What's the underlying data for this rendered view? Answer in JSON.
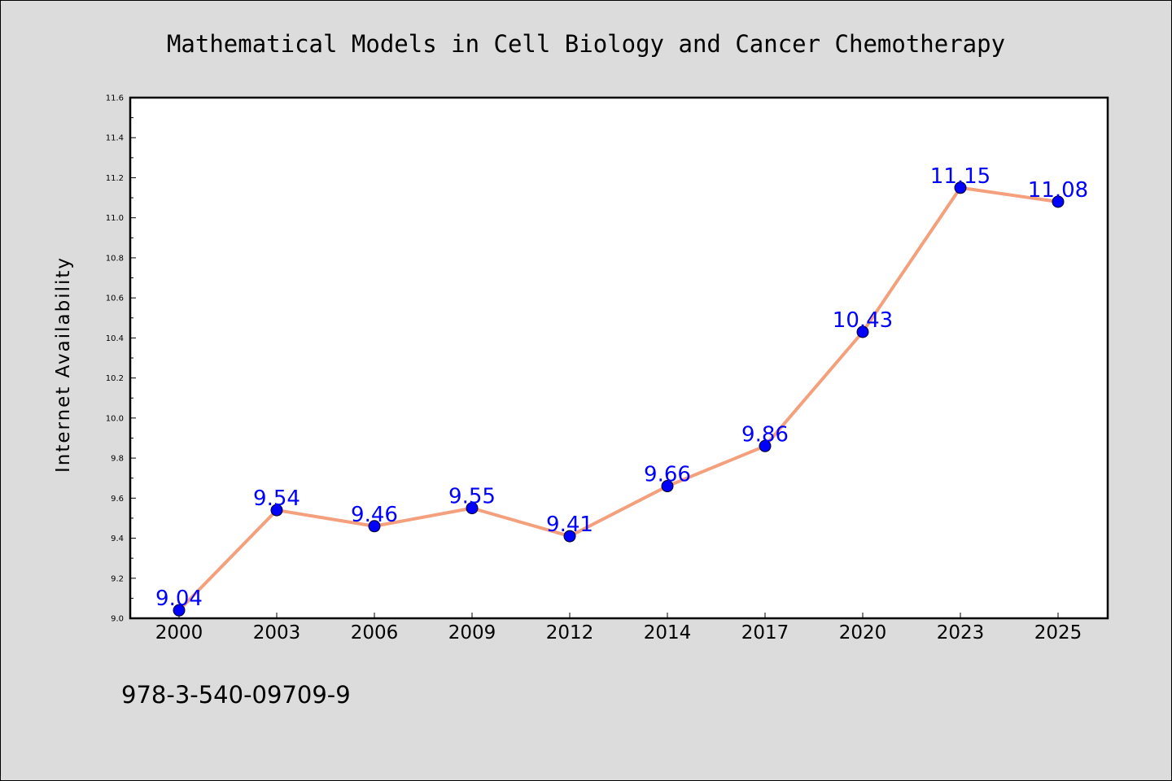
{
  "isbn": "978-3-540-09709-9",
  "colors": {
    "background": "#dcdcdc",
    "plot_background": "#ffffff",
    "line": "#f4a07c",
    "marker": "#0000ff",
    "data_label": "#0000ff"
  },
  "chart_data": {
    "type": "line",
    "title": "Mathematical Models in Cell Biology and Cancer Chemotherapy",
    "xlabel": "",
    "ylabel": "Internet Availability",
    "categories": [
      "2000",
      "2003",
      "2006",
      "2009",
      "2012",
      "2014",
      "2017",
      "2020",
      "2023",
      "2025"
    ],
    "series": [
      {
        "values": [
          9.04,
          9.54,
          9.46,
          9.55,
          9.41,
          9.66,
          9.86,
          10.43,
          11.15,
          11.08
        ],
        "data_labels": [
          "9.04",
          "9.54",
          "9.46",
          "9.55",
          "9.41",
          "9.66",
          "9.86",
          "10.43",
          "11.15",
          "11.08"
        ]
      }
    ],
    "ylim": [
      9.0,
      11.6
    ],
    "yticks": [
      "9.0",
      "9.2",
      "9.4",
      "9.6",
      "9.8",
      "10.0",
      "10.2",
      "10.4",
      "10.6",
      "10.8",
      "11.0",
      "11.2",
      "11.4",
      "11.6"
    ],
    "grid": false,
    "legend": "none",
    "marker": "circle"
  }
}
